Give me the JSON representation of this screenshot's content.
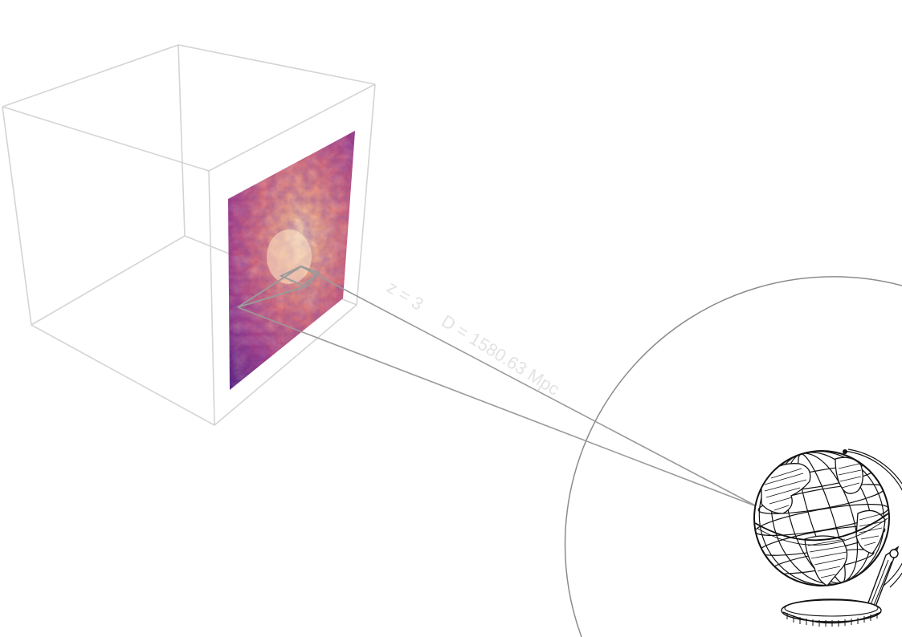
{
  "annotation": {
    "redshift": "z = 3",
    "distance": "D = 1580.63 Mpc"
  },
  "colors": {
    "cube": "#d4d4d4",
    "rays": "#9a9a9a",
    "horizon": "#8c8c8c",
    "annotation": "#e3e3e3",
    "slice_low": "#3b0f70",
    "slice_mid": "#b73779",
    "slice_high": "#fcd3a0"
  },
  "icons": {
    "observer": "globe-icon",
    "volume": "simulation-cube",
    "slice": "density-slice"
  }
}
